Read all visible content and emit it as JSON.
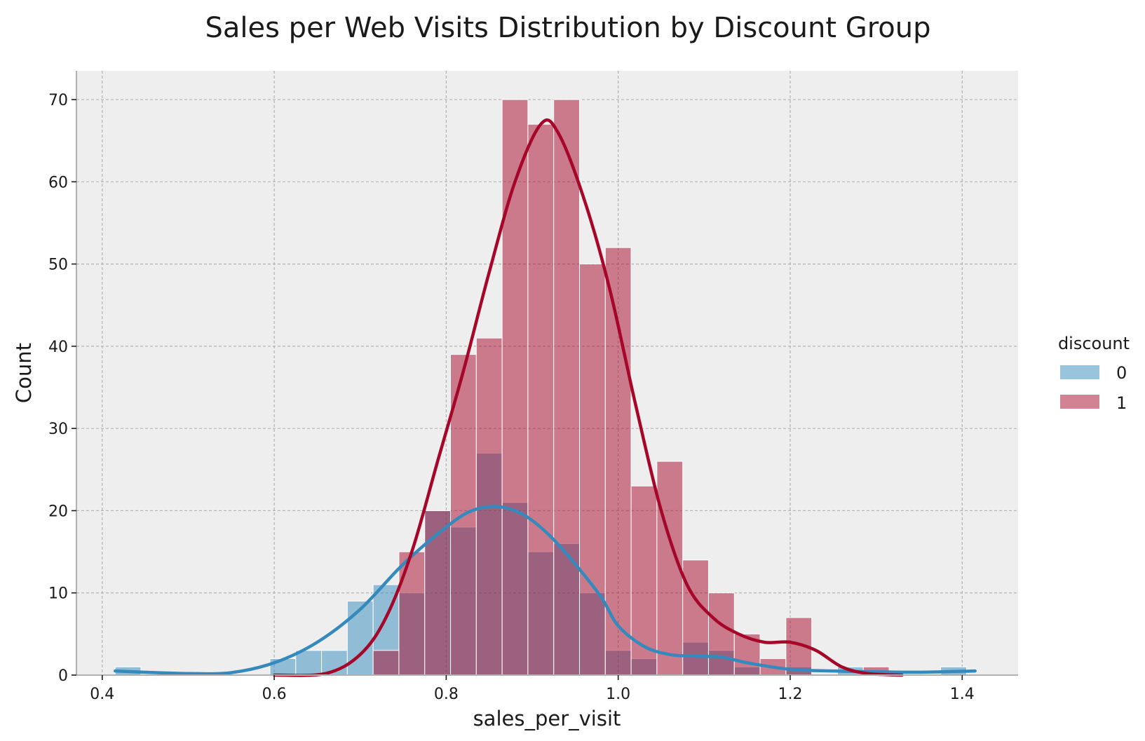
{
  "chart_data": {
    "type": "histogram",
    "title": "Sales per Web Visits Distribution by Discount Group",
    "xlabel": "sales_per_visit",
    "ylabel": "Count",
    "xlim": [
      0.37,
      1.465
    ],
    "ylim": [
      0,
      73.5
    ],
    "xticks": [
      0.4,
      0.6,
      0.8,
      1.0,
      1.2,
      1.4
    ],
    "yticks": [
      0,
      10,
      20,
      30,
      40,
      50,
      60,
      70
    ],
    "grid": true,
    "legend": {
      "title": "discount",
      "position": "right"
    },
    "bin_start": 0.415,
    "bin_width": 0.03,
    "series": [
      {
        "name": "0",
        "color": "#348abd",
        "counts": [
          1,
          0,
          0,
          0,
          0,
          0,
          2,
          3,
          3,
          9,
          11,
          10,
          20,
          18,
          27,
          21,
          15,
          16,
          10,
          3,
          2,
          0,
          4,
          3,
          1,
          0,
          1,
          0,
          1,
          0,
          0,
          0,
          1
        ],
        "kde": [
          [
            0.415,
            0.5
          ],
          [
            0.45,
            0.35
          ],
          [
            0.5,
            0.2
          ],
          [
            0.55,
            0.3
          ],
          [
            0.6,
            1.5
          ],
          [
            0.65,
            4
          ],
          [
            0.7,
            8
          ],
          [
            0.75,
            13.5
          ],
          [
            0.8,
            18
          ],
          [
            0.83,
            20
          ],
          [
            0.86,
            20.5
          ],
          [
            0.89,
            19.5
          ],
          [
            0.92,
            17
          ],
          [
            0.95,
            13.5
          ],
          [
            0.98,
            9.5
          ],
          [
            1.0,
            6
          ],
          [
            1.03,
            3.5
          ],
          [
            1.06,
            2.5
          ],
          [
            1.09,
            2.3
          ],
          [
            1.12,
            2.2
          ],
          [
            1.15,
            1.5
          ],
          [
            1.2,
            0.7
          ],
          [
            1.25,
            0.5
          ],
          [
            1.3,
            0.4
          ],
          [
            1.35,
            0.35
          ],
          [
            1.415,
            0.5
          ]
        ]
      },
      {
        "name": "1",
        "color": "#a60628",
        "counts": [
          0,
          0,
          0,
          0,
          0,
          0,
          0,
          0,
          0,
          0,
          3,
          15,
          20,
          39,
          41,
          70,
          67,
          70,
          50,
          52,
          23,
          26,
          14,
          10,
          5,
          2,
          7,
          0,
          0,
          1,
          0,
          0,
          0
        ],
        "kde": [
          [
            0.6,
            0
          ],
          [
            0.66,
            0.2
          ],
          [
            0.7,
            2.5
          ],
          [
            0.73,
            7
          ],
          [
            0.76,
            15
          ],
          [
            0.79,
            26
          ],
          [
            0.82,
            37
          ],
          [
            0.85,
            49
          ],
          [
            0.88,
            60
          ],
          [
            0.91,
            67
          ],
          [
            0.93,
            66
          ],
          [
            0.96,
            58
          ],
          [
            0.99,
            47
          ],
          [
            1.02,
            33
          ],
          [
            1.05,
            20
          ],
          [
            1.08,
            11
          ],
          [
            1.11,
            7
          ],
          [
            1.14,
            5
          ],
          [
            1.17,
            4
          ],
          [
            1.2,
            4
          ],
          [
            1.23,
            3
          ],
          [
            1.26,
            1
          ],
          [
            1.29,
            0.2
          ],
          [
            1.33,
            0
          ]
        ]
      }
    ]
  }
}
